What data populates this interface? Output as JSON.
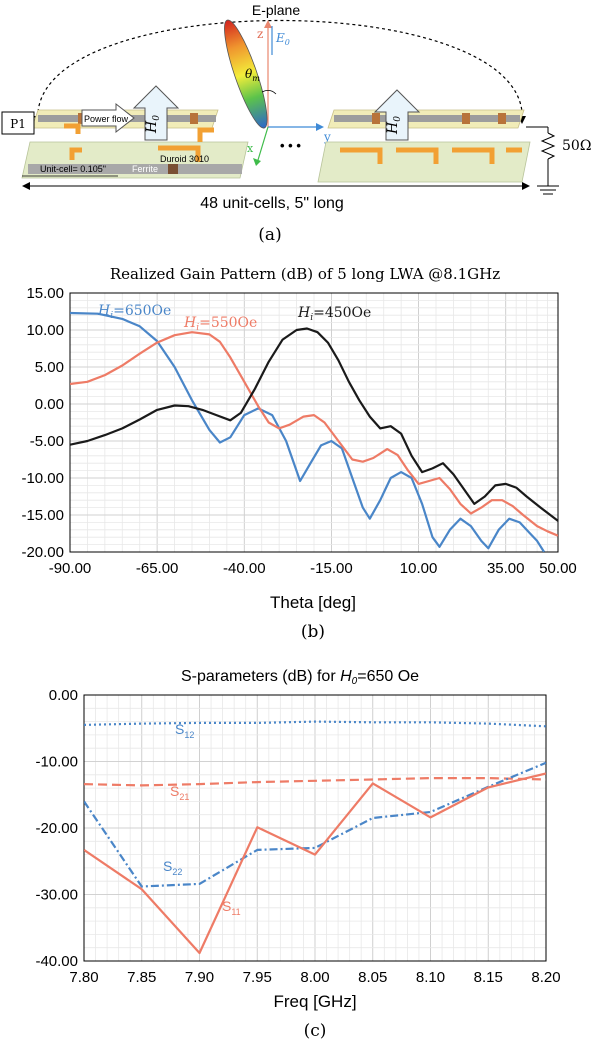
{
  "panel_a": {
    "eplane_label": "E-plane",
    "port_label": "P1",
    "power_flow_label": "Power flow",
    "h0_label": "H",
    "h0_sub": "0",
    "substrate_label": "Duroid 3010",
    "unitcell_label": "Unit-cell= 0.105\"",
    "ferrite_label": "Ferrite",
    "axis_z": "z",
    "axis_y": "y",
    "axis_x": "x",
    "e0_label": "E",
    "e0_sub": "0",
    "theta_label": "θ",
    "theta_sub": "m",
    "ellipsis": "• • •",
    "load_label": "50Ω",
    "span_label": "48 unit-cells, 5\" long",
    "caption": "(a)"
  },
  "panel_b": {
    "caption": "(b)",
    "series_labels": [
      {
        "base": "H",
        "sub": "i",
        "rest": "=650Oe"
      },
      {
        "base": "H",
        "sub": "i",
        "rest": "=550Oe"
      },
      {
        "base": "H",
        "sub": "i",
        "rest": "=450Oe"
      }
    ]
  },
  "panel_c": {
    "caption": "(c)",
    "title_prefix": "S-parameters (dB) for ",
    "title_h": "H",
    "title_sub": "0",
    "title_suffix": "=650 Oe",
    "series_labels": [
      {
        "base": "S",
        "sub": "12"
      },
      {
        "base": "S",
        "sub": "21"
      },
      {
        "base": "S",
        "sub": "22"
      },
      {
        "base": "S",
        "sub": "11"
      }
    ]
  },
  "chart_data": [
    {
      "type": "line",
      "title": "Realized Gain Pattern (dB) of 5  long LWA @8.1GHz",
      "xlabel": "Theta [deg]",
      "ylabel": "",
      "xlim": [
        -90,
        50
      ],
      "ylim": [
        -20,
        15
      ],
      "xticks": [
        "-90.00",
        "-65.00",
        "-40.00",
        "-15.00",
        "10.00",
        "35.00",
        "50.00"
      ],
      "xtick_values": [
        -90,
        -65,
        -40,
        -15,
        10,
        35,
        50
      ],
      "yticks": [
        "15.00",
        "10.00",
        "5.00",
        "0.00",
        "-5.00",
        "-10.00",
        "-15.00",
        "-20.00"
      ],
      "ytick_values": [
        15,
        10,
        5,
        0,
        -5,
        -10,
        -15,
        -20
      ],
      "grid": true,
      "series": [
        {
          "label_ref": 0,
          "color": "#4a86c8",
          "points": [
            [
              -90,
              12.3
            ],
            [
              -82,
              12.2
            ],
            [
              -75,
              11.5
            ],
            [
              -70,
              10.5
            ],
            [
              -65,
              8.5
            ],
            [
              -60,
              5
            ],
            [
              -55,
              0.5
            ],
            [
              -50,
              -3.5
            ],
            [
              -47,
              -5.2
            ],
            [
              -44,
              -4.5
            ],
            [
              -40,
              -1.5
            ],
            [
              -36,
              -0.6
            ],
            [
              -32,
              -1.5
            ],
            [
              -28,
              -5
            ],
            [
              -24,
              -10.4
            ],
            [
              -21,
              -8
            ],
            [
              -18,
              -5.6
            ],
            [
              -15,
              -5
            ],
            [
              -12,
              -6
            ],
            [
              -9,
              -10
            ],
            [
              -6,
              -14
            ],
            [
              -4,
              -15.5
            ],
            [
              -1,
              -13
            ],
            [
              2,
              -10
            ],
            [
              5,
              -9.2
            ],
            [
              8,
              -10
            ],
            [
              11,
              -13.5
            ],
            [
              14,
              -18
            ],
            [
              16,
              -19.3
            ],
            [
              19,
              -17
            ],
            [
              22,
              -15.5
            ],
            [
              25,
              -16.5
            ],
            [
              28,
              -18.5
            ],
            [
              30,
              -19.5
            ],
            [
              33,
              -17
            ],
            [
              36,
              -15.5
            ],
            [
              39,
              -16
            ],
            [
              42,
              -17.5
            ],
            [
              44,
              -18.5
            ],
            [
              46,
              -20
            ]
          ]
        },
        {
          "label_ref": 1,
          "color": "#ee7b66",
          "points": [
            [
              -90,
              2.7
            ],
            [
              -85,
              3
            ],
            [
              -80,
              3.9
            ],
            [
              -75,
              5.2
            ],
            [
              -70,
              6.8
            ],
            [
              -65,
              8.3
            ],
            [
              -60,
              9.3
            ],
            [
              -55,
              9.7
            ],
            [
              -50,
              9.4
            ],
            [
              -47,
              8.4
            ],
            [
              -44,
              6.3
            ],
            [
              -40,
              3
            ],
            [
              -36,
              -0.3
            ],
            [
              -33,
              -2.5
            ],
            [
              -30,
              -3.3
            ],
            [
              -27,
              -2.8
            ],
            [
              -23,
              -1.7
            ],
            [
              -20,
              -1.5
            ],
            [
              -17,
              -2.5
            ],
            [
              -13,
              -5
            ],
            [
              -9,
              -7.5
            ],
            [
              -6,
              -7.8
            ],
            [
              -3,
              -7.3
            ],
            [
              1,
              -6.1
            ],
            [
              4,
              -6.9
            ],
            [
              7,
              -9
            ],
            [
              10,
              -10.8
            ],
            [
              13,
              -10.4
            ],
            [
              16,
              -10
            ],
            [
              19,
              -11.5
            ],
            [
              22,
              -13.5
            ],
            [
              25,
              -14.8
            ],
            [
              28,
              -14
            ],
            [
              31,
              -13
            ],
            [
              34,
              -13
            ],
            [
              37,
              -13.8
            ],
            [
              40,
              -15
            ],
            [
              44,
              -16.5
            ],
            [
              47,
              -17.2
            ],
            [
              50,
              -17.8
            ]
          ]
        },
        {
          "label_ref": 2,
          "color": "#1a1a1a",
          "points": [
            [
              -90,
              -5.5
            ],
            [
              -85,
              -5
            ],
            [
              -80,
              -4.2
            ],
            [
              -75,
              -3.3
            ],
            [
              -70,
              -2.1
            ],
            [
              -65,
              -0.8
            ],
            [
              -60,
              -0.2
            ],
            [
              -56,
              -0.3
            ],
            [
              -52,
              -0.8
            ],
            [
              -48,
              -1.5
            ],
            [
              -44,
              -2.2
            ],
            [
              -41,
              -1.2
            ],
            [
              -37,
              2
            ],
            [
              -33,
              5.7
            ],
            [
              -29,
              8.7
            ],
            [
              -25,
              10
            ],
            [
              -22,
              10.2
            ],
            [
              -19,
              9.7
            ],
            [
              -16,
              8.3
            ],
            [
              -13,
              5.9
            ],
            [
              -10,
              3
            ],
            [
              -7,
              0.5
            ],
            [
              -4,
              -1.7
            ],
            [
              -1,
              -3.3
            ],
            [
              2,
              -3
            ],
            [
              5,
              -4
            ],
            [
              8,
              -7
            ],
            [
              11,
              -9.2
            ],
            [
              14,
              -8.7
            ],
            [
              17,
              -8
            ],
            [
              20,
              -9.5
            ],
            [
              23,
              -11.5
            ],
            [
              26,
              -13.5
            ],
            [
              29,
              -12.5
            ],
            [
              32,
              -11
            ],
            [
              35,
              -10.8
            ],
            [
              38,
              -11.3
            ],
            [
              41,
              -12.5
            ],
            [
              45,
              -14
            ],
            [
              50,
              -15.8
            ]
          ]
        }
      ]
    },
    {
      "type": "line",
      "title": "S-parameters (dB) for H0=650 Oe",
      "xlabel": "Freq [GHz]",
      "ylabel": "",
      "xlim": [
        7.8,
        8.2
      ],
      "ylim": [
        -40,
        0
      ],
      "xticks": [
        "7.80",
        "7.85",
        "7.90",
        "7.95",
        "8.00",
        "8.05",
        "8.10",
        "8.15",
        "8.20"
      ],
      "xtick_values": [
        7.8,
        7.85,
        7.9,
        7.95,
        8.0,
        8.05,
        8.1,
        8.15,
        8.2
      ],
      "yticks": [
        "0.00",
        "-10.00",
        "-20.00",
        "-30.00",
        "-40.00"
      ],
      "ytick_values": [
        0,
        -10,
        -20,
        -30,
        -40
      ],
      "grid": true,
      "series": [
        {
          "label_ref": 0,
          "color": "#4a86c8",
          "dash": "2,3",
          "x": [
            7.8,
            7.85,
            7.9,
            7.95,
            8.0,
            8.05,
            8.1,
            8.15,
            8.2
          ],
          "y": [
            -4.5,
            -4.3,
            -4.2,
            -4.2,
            -4.0,
            -4.1,
            -4.1,
            -4.3,
            -4.7
          ]
        },
        {
          "label_ref": 1,
          "color": "#ee7b66",
          "dash": "9,5",
          "x": [
            7.8,
            7.85,
            7.9,
            7.95,
            8.0,
            8.05,
            8.1,
            8.15,
            8.2
          ],
          "y": [
            -13.4,
            -13.6,
            -13.4,
            -13.1,
            -12.9,
            -12.7,
            -12.5,
            -12.5,
            -12.7
          ]
        },
        {
          "label_ref": 2,
          "color": "#4a86c8",
          "dash": "8,3,2,3",
          "x": [
            7.8,
            7.85,
            7.9,
            7.95,
            8.0,
            8.05,
            8.1,
            8.15,
            8.2
          ],
          "y": [
            -16,
            -28.8,
            -28.4,
            -23.3,
            -23,
            -18.5,
            -17.6,
            -13.8,
            -10.2
          ]
        },
        {
          "label_ref": 3,
          "color": "#ee7b66",
          "dash": "",
          "x": [
            7.8,
            7.85,
            7.9,
            7.95,
            8.0,
            8.05,
            8.1,
            8.15,
            8.2
          ],
          "y": [
            -23.3,
            -29.2,
            -38.8,
            -19.9,
            -24,
            -13.3,
            -18.4,
            -13.9,
            -11.8
          ]
        }
      ]
    }
  ]
}
